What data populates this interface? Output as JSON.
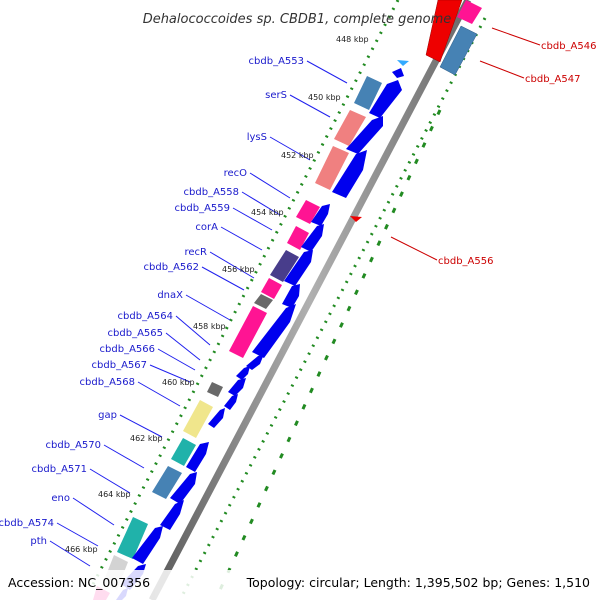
{
  "title": "Dehalococcoides sp. CBDB1, complete genome",
  "accession": "Accession: NC_007356",
  "summary": "Topology: circular; Length: 1,395,502 bp; Genes: 1,510",
  "scale_ticks": [
    "448 kbp",
    "450 kbp",
    "452 kbp",
    "454 kbp",
    "456 kbp",
    "458 kbp",
    "460 kbp",
    "462 kbp",
    "464 kbp",
    "466 kbp"
  ],
  "colors": {
    "backbone": "#888888",
    "gene_arrow": "#0000ee",
    "green_dots": "#228b22",
    "label_blue": "#1a1acc",
    "label_red": "#cc0000"
  },
  "left_labels": [
    "cbdb_A553",
    "serS",
    "lysS",
    "recO",
    "cbdb_A558",
    "cbdb_A559",
    "corA",
    "recR",
    "cbdb_A562",
    "dnaX",
    "cbdb_A564",
    "cbdb_A565",
    "cbdb_A566",
    "cbdb_A567",
    "cbdb_A568",
    "gap",
    "cbdb_A570",
    "cbdb_A571",
    "eno",
    "cbdb_A574",
    "pth"
  ],
  "right_labels": [
    "cbdb_A546",
    "cbdb_A547",
    "cbdb_A556"
  ]
}
